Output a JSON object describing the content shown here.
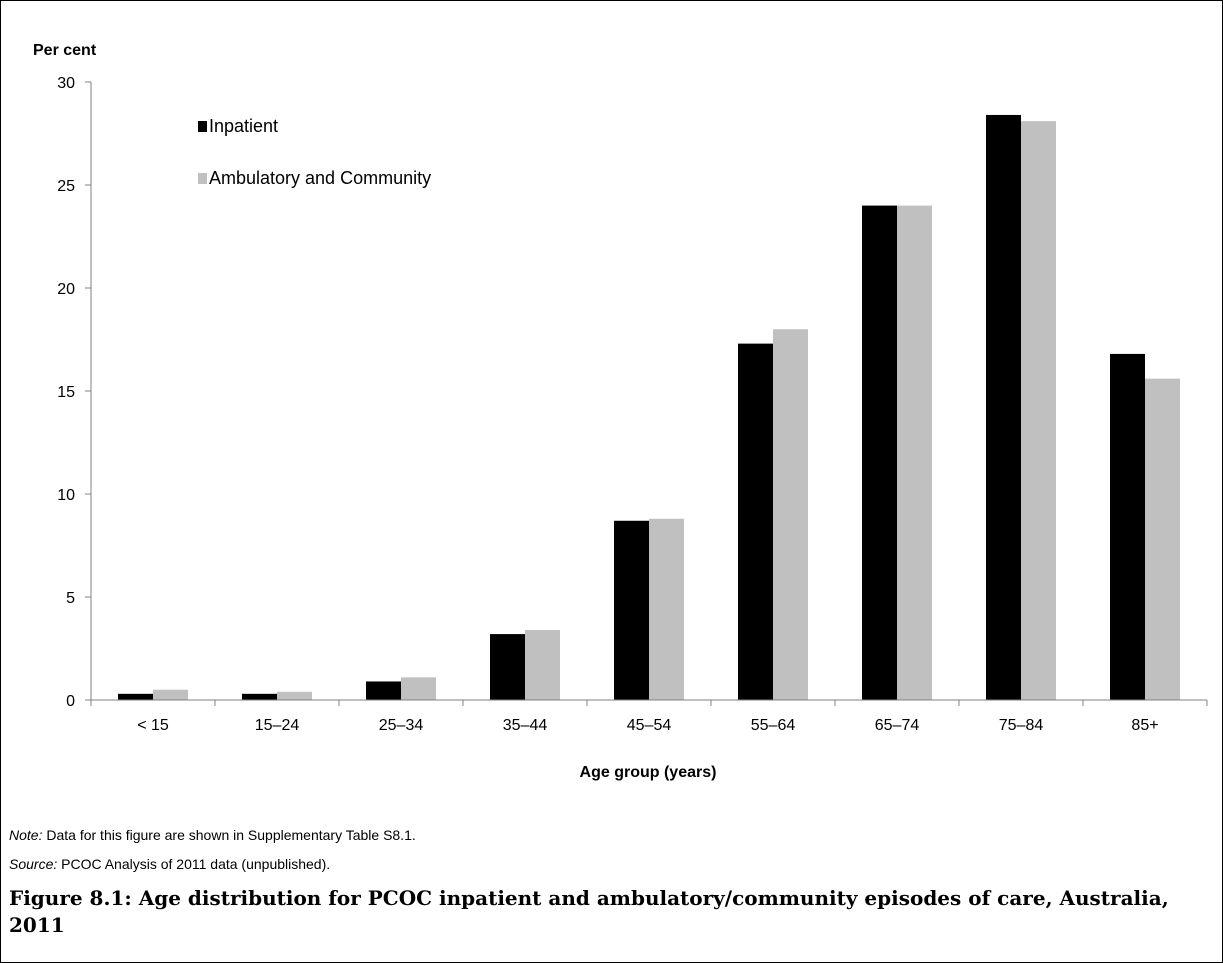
{
  "chart_data": {
    "type": "bar",
    "ylabel": "Per cent",
    "xlabel": "Age group (years)",
    "ylim": [
      0,
      30
    ],
    "yticks": [
      0,
      5,
      10,
      15,
      20,
      25,
      30
    ],
    "grid": false,
    "legend_placement": "top-left",
    "categories": [
      "< 15",
      "15–24",
      "25–34",
      "35–44",
      "45–54",
      "55–64",
      "65–74",
      "75–84",
      "85+"
    ],
    "series": [
      {
        "name": "Inpatient",
        "color": "#000000",
        "values": [
          0.3,
          0.3,
          0.9,
          3.2,
          8.7,
          17.3,
          24.0,
          28.4,
          16.8
        ]
      },
      {
        "name": "Ambulatory and Community",
        "color": "#c0c0c0",
        "values": [
          0.5,
          0.4,
          1.1,
          3.4,
          8.8,
          18.0,
          24.0,
          28.1,
          15.6
        ]
      }
    ]
  },
  "note": {
    "label": "Note:",
    "text": " Data for this figure are shown in Supplementary Table S8.1."
  },
  "source": {
    "label": "Source:",
    "text": " PCOC Analysis of 2011 data (unpublished)."
  },
  "caption": "Figure 8.1: Age distribution for PCOC inpatient and ambulatory/community episodes of care, Australia, 2011"
}
